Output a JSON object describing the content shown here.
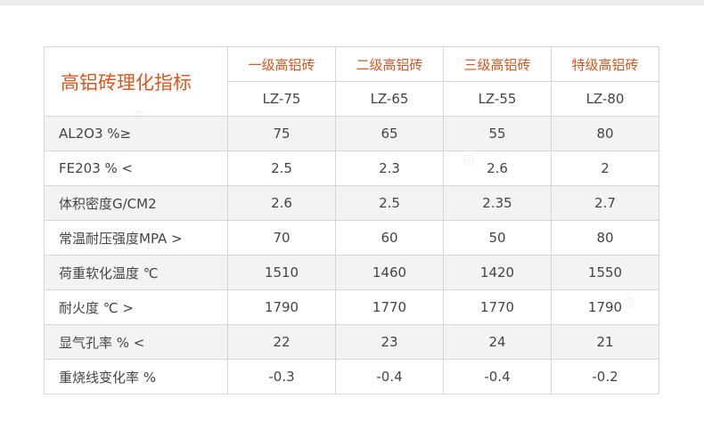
{
  "title": "高铝砖理化指标",
  "grades": [
    "一级高铝砖",
    "二级高铝砖",
    "三级高铝砖",
    "特级高铝砖"
  ],
  "models": [
    "LZ-75",
    "LZ-65",
    "LZ-55",
    "LZ-80"
  ],
  "rows": [
    {
      "label": "AL2O3 %≥",
      "values": [
        "75",
        "65",
        "55",
        "80"
      ]
    },
    {
      "label": "FE203 % <",
      "values": [
        "2.5",
        "2.3",
        "2.6",
        "2"
      ]
    },
    {
      "label": "体积密度G/CM2",
      "values": [
        "2.6",
        "2.5",
        "2.35",
        "2.7"
      ]
    },
    {
      "label": "常温耐压强度MPA  >",
      "values": [
        "70",
        "60",
        "50",
        "80"
      ]
    },
    {
      "label": "荷重软化温度 ℃",
      "values": [
        "1510",
        "1460",
        "1420",
        "1550"
      ]
    },
    {
      "label": "耐火度 ℃  >",
      "values": [
        "1790",
        "1770",
        "1770",
        "1790"
      ]
    },
    {
      "label": "显气孔率 %  <",
      "values": [
        "22",
        "23",
        "24",
        "21"
      ]
    },
    {
      "label": "重烧线变化率 %",
      "values": [
        "-0.3",
        "-0.4",
        "-0.4",
        "-0.2"
      ]
    }
  ],
  "colors": {
    "accent": "#e0541e",
    "border": "#d6d6d6",
    "row_alt": "#f3f3f3"
  }
}
